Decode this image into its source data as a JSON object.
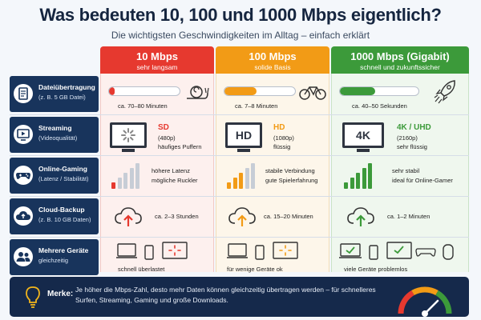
{
  "title": "Was bedeuten 10, 100 und 1000 Mbps eigentlich?",
  "subtitle": "Die wichtigsten Geschwindigkeiten im Alltag – einfach erklärt",
  "columns": [
    {
      "speed": "10 Mbps",
      "desc": "sehr langsam",
      "color": "#e6392f"
    },
    {
      "speed": "100 Mbps",
      "desc": "solide Basis",
      "color": "#f29b16"
    },
    {
      "speed": "1000 Mbps (Gigabit)",
      "desc": "schnell und zukunftssicher",
      "color": "#3c9a3a"
    }
  ],
  "rows": {
    "download": {
      "label": "Dateiübertragung",
      "sub": "(z. B. 5 GB Datei)",
      "cells": [
        {
          "time": "ca. 70–80 Minuten",
          "progress": 0.08,
          "icon": "snail-icon"
        },
        {
          "time": "ca. 7–8 Minuten",
          "progress": 0.45,
          "icon": "bicycle-icon"
        },
        {
          "time": "ca. 40–50 Sekunden",
          "progress": 0.45,
          "icon": "rocket-icon"
        }
      ]
    },
    "streaming": {
      "label": "Streaming",
      "sub": "(Videoqualität)",
      "cells": [
        {
          "screen": "",
          "quality": "SD",
          "res": "(480p)",
          "note": "häufiges Puffern"
        },
        {
          "screen": "HD",
          "quality": "HD",
          "res": "(1080p)",
          "note": "flüssig"
        },
        {
          "screen": "4K",
          "quality": "4K / UHD",
          "res": "(2160p)",
          "note": "sehr flüssig"
        }
      ]
    },
    "gaming": {
      "label": "Online-Gaming",
      "sub": "(Latenz / Stabilität)",
      "cells": [
        {
          "l1": "höhere Latenz",
          "l2": "mögliche Ruckler",
          "bars": 1
        },
        {
          "l1": "stabile Verbindung",
          "l2": "gute Spielerfahrung",
          "bars": 3
        },
        {
          "l1": "sehr stabil",
          "l2": "ideal für Online-Gamer",
          "bars": 5
        }
      ]
    },
    "backup": {
      "label": "Cloud-Backup",
      "sub": "(z. B. 10 GB Daten)",
      "cells": [
        {
          "time": "ca. 2–3 Stunden"
        },
        {
          "time": "ca. 15–20 Minuten"
        },
        {
          "time": "ca. 1–2 Minuten"
        }
      ]
    },
    "devices": {
      "label": "Mehrere Geräte",
      "sub": "gleichzeitig",
      "cells": [
        {
          "note": "schnell überlastet"
        },
        {
          "note": "für wenige Geräte ok"
        },
        {
          "note": "viele Geräte problemlos"
        }
      ]
    }
  },
  "footer": {
    "label": "Merke:",
    "text": "Je höher die Mbps-Zahl, desto mehr Daten können gleichzeitig übertragen werden – für schnelleres Surfen, Streaming, Gaming und große Downloads."
  }
}
